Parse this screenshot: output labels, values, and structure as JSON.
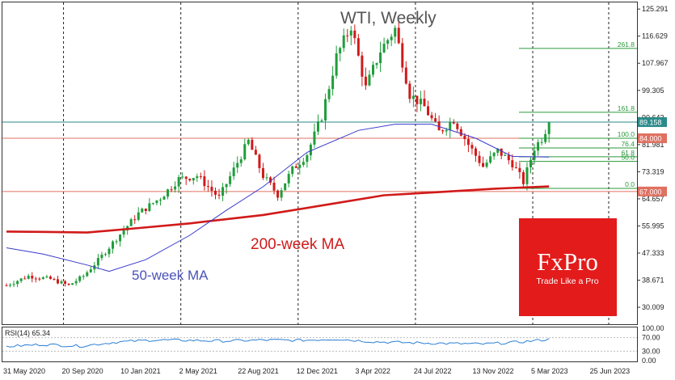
{
  "chart_data": {
    "type": "candlestick",
    "title": "WTI, Weekly",
    "instrument": "WTI",
    "timeframe": "Weekly",
    "ylim": [
      24.6,
      127.4
    ],
    "y_ticks": [
      "125.291",
      "116.629",
      "107.967",
      "99.305",
      "90.643",
      "81.981",
      "73.319",
      "64.657",
      "55.995",
      "47.333",
      "38.671",
      "30.009"
    ],
    "x_labels": [
      "31 May 2020",
      "20 Sep 2020",
      "10 Jan 2021",
      "2 May 2021",
      "22 Aug 2021",
      "12 Dec 2021",
      "3 Apr 2022",
      "24 Jul 2022",
      "13 Nov 2022",
      "5 Mar 2023",
      "25 Jun 2023"
    ],
    "price_badges": [
      {
        "label": "89.158",
        "value": 89.158,
        "color": "#2a8a8a"
      },
      {
        "label": "84.000",
        "value": 84.0,
        "color": "#e07060"
      },
      {
        "label": "67.000",
        "value": 67.0,
        "color": "#e07060"
      }
    ],
    "horizontal_levels": [
      {
        "value": 89.158,
        "color": "#2a8a8a"
      },
      {
        "value": 84.0,
        "color": "#e07060"
      },
      {
        "value": 67.0,
        "color": "#e07060"
      }
    ],
    "fibonacci": [
      {
        "label": "261.8",
        "value": 112.7
      },
      {
        "label": "161.8",
        "value": 92.3
      },
      {
        "label": "100.0",
        "value": 84.0
      },
      {
        "label": "76.4",
        "value": 80.9
      },
      {
        "label": "61.8",
        "value": 78.1
      },
      {
        "label": "50.0",
        "value": 76.6
      },
      {
        "label": "0.0",
        "value": 68.0
      }
    ],
    "moving_averages": [
      {
        "label": "200-week MA",
        "color": "#d11a1a",
        "points": [
          [
            0,
            54.2
          ],
          [
            10,
            54.1
          ],
          [
            22,
            53.9
          ],
          [
            35,
            55.2
          ],
          [
            50,
            56.8
          ],
          [
            70,
            59.5
          ],
          [
            88,
            62.9
          ],
          [
            103,
            65.8
          ],
          [
            118,
            66.8
          ],
          [
            133,
            67.9
          ],
          [
            148,
            68.6
          ]
        ]
      },
      {
        "label": "50-week MA",
        "color": "#3a3acc",
        "points": [
          [
            0,
            49.0
          ],
          [
            10,
            47.0
          ],
          [
            22,
            43.5
          ],
          [
            28,
            41.5
          ],
          [
            38,
            45.2
          ],
          [
            50,
            53.0
          ],
          [
            60,
            61.0
          ],
          [
            70,
            68.5
          ],
          [
            82,
            79.5
          ],
          [
            96,
            86.5
          ],
          [
            106,
            88.5
          ],
          [
            116,
            88.5
          ],
          [
            128,
            84.0
          ],
          [
            138,
            78.2
          ],
          [
            148,
            78.0
          ]
        ]
      }
    ],
    "rsi": {
      "label": "RSI(14) 65.34",
      "levels": [
        "100.00",
        "70.00",
        "30.00",
        "0.00"
      ],
      "points": [
        [
          0,
          44
        ],
        [
          10,
          50
        ],
        [
          20,
          45
        ],
        [
          30,
          57
        ],
        [
          40,
          63
        ],
        [
          50,
          62
        ],
        [
          60,
          60
        ],
        [
          70,
          63
        ],
        [
          80,
          62
        ],
        [
          90,
          66
        ],
        [
          100,
          58
        ],
        [
          110,
          55
        ],
        [
          120,
          53
        ],
        [
          130,
          51
        ],
        [
          140,
          57
        ],
        [
          148,
          65
        ]
      ]
    },
    "candles_anchor_closes": [
      [
        0,
        37.0
      ],
      [
        6,
        40.0
      ],
      [
        12,
        39.0
      ],
      [
        17,
        37.0
      ],
      [
        21,
        40.0
      ],
      [
        25,
        45.0
      ],
      [
        30,
        52.0
      ],
      [
        36,
        60.0
      ],
      [
        42,
        65.0
      ],
      [
        47,
        71.0
      ],
      [
        52,
        72.0
      ],
      [
        58,
        65.0
      ],
      [
        62,
        74.0
      ],
      [
        66,
        83.0
      ],
      [
        70,
        72.0
      ],
      [
        74,
        66.0
      ],
      [
        78,
        74.0
      ],
      [
        82,
        79.0
      ],
      [
        86,
        91.0
      ],
      [
        90,
        110.0
      ],
      [
        94,
        120.0
      ],
      [
        98,
        100.0
      ],
      [
        102,
        112.0
      ],
      [
        106,
        119.0
      ],
      [
        110,
        98.0
      ],
      [
        114,
        94.0
      ],
      [
        118,
        86.0
      ],
      [
        122,
        90.0
      ],
      [
        126,
        82.0
      ],
      [
        130,
        75.0
      ],
      [
        134,
        80.0
      ],
      [
        138,
        76.0
      ],
      [
        141,
        70.0
      ],
      [
        144,
        81.0
      ],
      [
        146,
        84.0
      ],
      [
        148,
        89.158
      ]
    ],
    "logo": {
      "brand": "FxPro",
      "tagline": "Trade Like a Pro"
    }
  }
}
